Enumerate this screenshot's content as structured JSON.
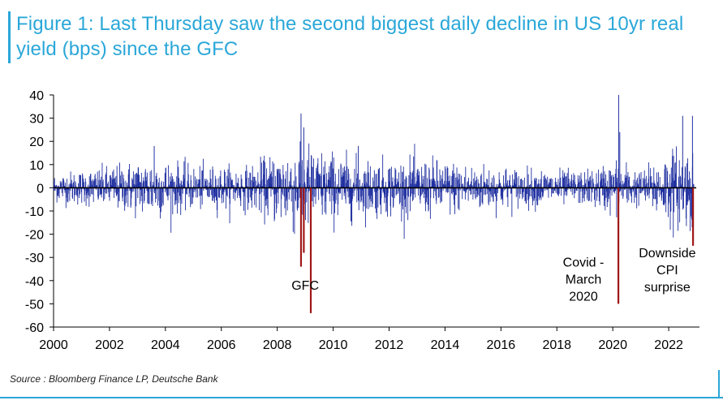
{
  "title": "Figure 1: Last Thursday saw the second biggest daily decline in US 10yr real yield (bps) since the GFC",
  "source": "Source : Bloomberg Finance LP, Deutsche Bank",
  "colors": {
    "accent": "#2aa7d8",
    "series": "#1f2fa0",
    "highlight": "#a01818"
  },
  "chart_data": {
    "type": "bar",
    "title": "Figure 1: Last Thursday saw the second biggest daily decline in US 10yr real yield (bps) since the GFC",
    "xlabel": "",
    "ylabel": "",
    "xlim": [
      2000,
      2023.1
    ],
    "ylim": [
      -60,
      40
    ],
    "yticks": [
      40,
      30,
      20,
      10,
      0,
      -10,
      -20,
      -30,
      -40,
      -50,
      -60
    ],
    "xticks": [
      2000,
      2002,
      2004,
      2006,
      2008,
      2010,
      2012,
      2014,
      2016,
      2018,
      2020,
      2022
    ],
    "series": [
      {
        "kind": "daily-change-bars",
        "volatility_profile": [
          {
            "year": 2000,
            "sd": 3.0
          },
          {
            "year": 2002,
            "sd": 4.5
          },
          {
            "year": 2003.5,
            "sd": 6.5
          },
          {
            "year": 2005,
            "sd": 4.5
          },
          {
            "year": 2007,
            "sd": 4.5
          },
          {
            "year": 2008.8,
            "sd": 10.0
          },
          {
            "year": 2009.5,
            "sd": 8.0
          },
          {
            "year": 2011,
            "sd": 6.0
          },
          {
            "year": 2013.5,
            "sd": 6.0
          },
          {
            "year": 2015,
            "sd": 5.0
          },
          {
            "year": 2017,
            "sd": 4.0
          },
          {
            "year": 2019,
            "sd": 3.5
          },
          {
            "year": 2020.2,
            "sd": 6.0
          },
          {
            "year": 2021,
            "sd": 3.5
          },
          {
            "year": 2022,
            "sd": 8.0
          },
          {
            "year": 2022.9,
            "sd": 9.0
          }
        ],
        "spikes": [
          {
            "year": 2008.85,
            "value": 32
          },
          {
            "year": 2008.95,
            "value": 26
          },
          {
            "year": 2020.21,
            "value": 40
          },
          {
            "year": 2020.25,
            "value": 24
          },
          {
            "year": 2022.5,
            "value": 31
          },
          {
            "year": 2022.85,
            "value": 31
          },
          {
            "year": 2003.6,
            "value": 18
          },
          {
            "year": 2010.9,
            "value": 18
          }
        ]
      },
      {
        "kind": "highlighted-declines",
        "points": [
          {
            "year": 2008.85,
            "value": -34
          },
          {
            "year": 2008.95,
            "value": -28
          },
          {
            "year": 2009.2,
            "value": -54
          },
          {
            "year": 2020.2,
            "value": -50
          },
          {
            "year": 2022.87,
            "value": -25
          }
        ]
      }
    ],
    "annotations": [
      {
        "lines": [
          "GFC"
        ],
        "year": 2009.0,
        "value": -44
      },
      {
        "lines": [
          "Covid -",
          "March",
          "2020"
        ],
        "year": 2018.95,
        "value": -34
      },
      {
        "lines": [
          "Downside",
          "CPI",
          "surprise"
        ],
        "year": 2021.95,
        "value": -30
      }
    ],
    "grid": false,
    "legend": "none"
  }
}
